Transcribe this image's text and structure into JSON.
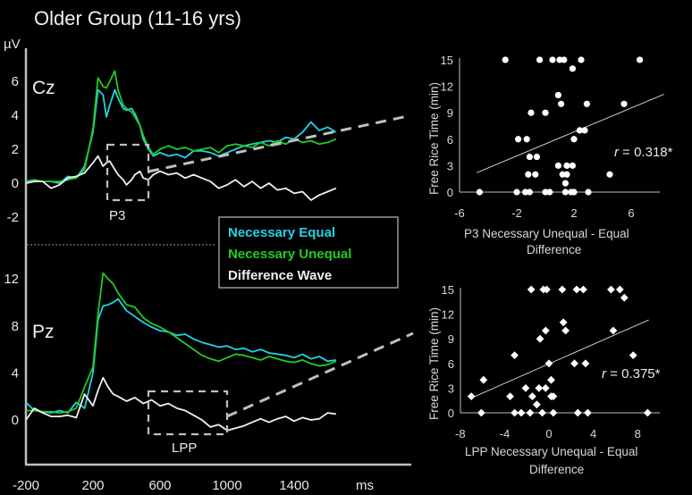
{
  "title": "Older Group (11-16 yrs)",
  "colors": {
    "necessary_equal": "#22d3e6",
    "necessary_unequal": "#22cc22",
    "difference_wave": "#f0f0f0",
    "dashed": "#bfbfbf",
    "axis": "#bfbfbf"
  },
  "chart_data": [
    {
      "type": "line",
      "name": "ERP Cz",
      "electrode": "Cz",
      "ylabel": "µV",
      "xlabel": "ms",
      "x_ticks": [
        -200,
        200,
        600,
        1000,
        1400
      ],
      "y_ticks": [
        6,
        4,
        2,
        0,
        -2
      ],
      "xlim": [
        -200,
        1700
      ],
      "ylim": [
        -3.6,
        7.5
      ],
      "component_box": {
        "label": "P3",
        "x_range": [
          300,
          550
        ],
        "y_range": [
          -1.0,
          2.2
        ]
      },
      "x": [
        -200,
        -150,
        -100,
        -50,
        0,
        50,
        100,
        150,
        200,
        230,
        260,
        280,
        300,
        330,
        350,
        380,
        400,
        430,
        450,
        480,
        500,
        530,
        560,
        600,
        650,
        700,
        750,
        800,
        850,
        900,
        950,
        1000,
        1050,
        1100,
        1150,
        1200,
        1250,
        1300,
        1350,
        1400,
        1450,
        1500,
        1550,
        1600,
        1650
      ],
      "series": [
        {
          "name": "Necessary Equal",
          "values": [
            0.1,
            0.2,
            0.1,
            0.1,
            0.0,
            0.4,
            0.3,
            1.0,
            3.0,
            5.5,
            5.2,
            3.9,
            4.6,
            5.5,
            5.0,
            4.4,
            4.3,
            4.4,
            4.1,
            3.4,
            2.6,
            2.0,
            1.6,
            1.8,
            1.6,
            1.7,
            1.5,
            1.9,
            1.9,
            1.8,
            1.6,
            1.8,
            2.0,
            2.2,
            2.3,
            2.4,
            2.5,
            2.4,
            2.7,
            2.6,
            3.0,
            3.6,
            3.1,
            3.3,
            3.0
          ]
        },
        {
          "name": "Necessary Unequal",
          "values": [
            0.0,
            0.2,
            0.1,
            0.1,
            0.1,
            0.2,
            0.3,
            0.8,
            3.2,
            6.2,
            5.7,
            5.6,
            6.0,
            6.6,
            5.5,
            4.6,
            4.4,
            4.2,
            3.9,
            3.4,
            2.8,
            2.1,
            1.7,
            2.0,
            2.2,
            2.0,
            2.1,
            1.9,
            2.0,
            2.1,
            1.8,
            2.2,
            2.3,
            2.2,
            2.1,
            2.4,
            2.2,
            2.5,
            2.3,
            2.6,
            2.4,
            2.5,
            2.3,
            2.4,
            2.6
          ]
        },
        {
          "name": "Difference Wave",
          "values": [
            0.0,
            0.1,
            0.1,
            -0.3,
            -0.1,
            0.3,
            0.4,
            0.6,
            1.2,
            1.6,
            1.0,
            1.2,
            1.3,
            0.8,
            0.5,
            0.2,
            -0.1,
            0.2,
            0.5,
            0.7,
            0.3,
            0.2,
            0.5,
            0.7,
            0.5,
            0.6,
            0.3,
            0.5,
            0.3,
            0.1,
            -0.3,
            -0.1,
            0.2,
            -0.2,
            0.1,
            -0.3,
            0.0,
            -0.4,
            -0.3,
            -0.6,
            -0.5,
            -1.0,
            -0.7,
            -0.5,
            -0.3
          ]
        }
      ]
    },
    {
      "type": "line",
      "name": "ERP Pz",
      "electrode": "Pz",
      "x_ticks": [
        -200,
        200,
        600,
        1000,
        1400
      ],
      "y_ticks": [
        12,
        8,
        4,
        0
      ],
      "xlim": [
        -200,
        1700
      ],
      "ylim": [
        -3.8,
        15
      ],
      "component_box": {
        "label": "LPP",
        "x_range": [
          550,
          1000
        ],
        "y_range": [
          -1.2,
          2.4
        ]
      },
      "x": [
        -200,
        -150,
        -100,
        -50,
        0,
        50,
        100,
        150,
        200,
        230,
        260,
        290,
        320,
        350,
        400,
        450,
        500,
        550,
        600,
        650,
        700,
        750,
        800,
        850,
        900,
        950,
        1000,
        1050,
        1100,
        1150,
        1200,
        1250,
        1300,
        1350,
        1400,
        1450,
        1500,
        1550,
        1600,
        1650
      ],
      "series": [
        {
          "name": "Necessary Equal",
          "values": [
            1.5,
            0.8,
            0.7,
            0.6,
            0.8,
            0.6,
            1.5,
            1.0,
            4.0,
            8.5,
            9.7,
            9.8,
            10.0,
            10.3,
            9.3,
            8.8,
            8.3,
            7.9,
            7.6,
            7.5,
            7.2,
            7.3,
            6.9,
            6.6,
            6.4,
            6.2,
            6.3,
            6.0,
            6.1,
            5.8,
            6.0,
            5.7,
            5.6,
            5.5,
            5.3,
            5.6,
            5.2,
            5.4,
            5.0,
            5.1
          ]
        },
        {
          "name": "Necessary Unequal",
          "values": [
            0.8,
            0.8,
            0.7,
            0.7,
            0.6,
            0.7,
            1.0,
            2.8,
            4.5,
            9.0,
            12.5,
            12.0,
            11.6,
            10.8,
            9.8,
            9.6,
            8.7,
            8.2,
            7.9,
            7.5,
            7.0,
            6.5,
            6.0,
            5.5,
            5.2,
            5.0,
            5.3,
            5.6,
            5.5,
            5.3,
            5.1,
            5.4,
            5.2,
            5.0,
            4.9,
            5.1,
            4.8,
            4.6,
            4.7,
            5.0
          ]
        },
        {
          "name": "Difference Wave",
          "values": [
            0.0,
            1.0,
            0.6,
            0.3,
            0.3,
            0.4,
            0.2,
            2.2,
            1.2,
            2.5,
            3.6,
            2.8,
            2.2,
            2.0,
            1.6,
            1.9,
            1.4,
            1.7,
            1.2,
            1.4,
            1.0,
            0.8,
            0.4,
            0.0,
            -0.6,
            -0.4,
            -0.9,
            -0.7,
            -0.5,
            -0.2,
            0.1,
            -0.2,
            0.1,
            0.3,
            -0.1,
            0.2,
            0.0,
            0.1,
            0.6,
            0.5
          ]
        }
      ]
    },
    {
      "type": "scatter",
      "name": "P3 scatter",
      "xlabel_line1": "P3 Necessary  Unequal  - Equal",
      "xlabel_line2": "Difference",
      "ylabel": "Free Rice Time (min)",
      "x_ticks": [
        -6,
        -2,
        2,
        6
      ],
      "y_ticks": [
        15,
        12,
        9,
        6,
        3,
        0
      ],
      "xlim": [
        -6.5,
        8.5
      ],
      "ylim": [
        0,
        15
      ],
      "marker": "circle",
      "annotation": {
        "r_symbol": "r",
        "text": " = 0.318*"
      },
      "trendline": {
        "x": [
          -4.8,
          8.3
        ],
        "y": [
          2.2,
          11.1
        ]
      },
      "points": [
        [
          -2.8,
          15
        ],
        [
          -0.4,
          15
        ],
        [
          0.5,
          15
        ],
        [
          1.0,
          15
        ],
        [
          1.3,
          15
        ],
        [
          2.5,
          15
        ],
        [
          6.6,
          15
        ],
        [
          1.9,
          14
        ],
        [
          0.9,
          11
        ],
        [
          1.1,
          10
        ],
        [
          2.9,
          10
        ],
        [
          5.5,
          10
        ],
        [
          -1.0,
          9
        ],
        [
          0.0,
          9
        ],
        [
          2.4,
          7
        ],
        [
          2.75,
          7
        ],
        [
          -1.9,
          6
        ],
        [
          -1.3,
          6
        ],
        [
          2.0,
          6
        ],
        [
          -1.1,
          4
        ],
        [
          -0.6,
          4
        ],
        [
          0.9,
          3
        ],
        [
          1.5,
          3
        ],
        [
          1.9,
          3
        ],
        [
          -1.2,
          2
        ],
        [
          -0.7,
          2
        ],
        [
          1.2,
          2
        ],
        [
          1.5,
          2
        ],
        [
          4.5,
          2
        ],
        [
          1.4,
          1
        ],
        [
          -4.6,
          0
        ],
        [
          -2.0,
          0
        ],
        [
          -1.4,
          0
        ],
        [
          -1.1,
          0
        ],
        [
          0.0,
          0
        ],
        [
          0.3,
          0
        ],
        [
          1.4,
          0
        ],
        [
          1.8,
          0
        ],
        [
          2.0,
          0
        ],
        [
          3.0,
          0
        ]
      ]
    },
    {
      "type": "scatter",
      "name": "LPP scatter",
      "xlabel_line1": "LPP Necessary  Unequal  - Equal",
      "xlabel_line2": "Difference",
      "ylabel": "Free Rice Time (min)",
      "x_ticks": [
        -8,
        -4,
        0,
        4,
        8
      ],
      "y_ticks": [
        15,
        12,
        9,
        6,
        3,
        0
      ],
      "xlim": [
        -8.1,
        10.2
      ],
      "ylim": [
        0,
        15
      ],
      "marker": "diamond",
      "annotation": {
        "r_symbol": "r",
        "text": " = 0.375*"
      },
      "trendline": {
        "x": [
          -7.0,
          9.0
        ],
        "y": [
          1.8,
          11.3
        ]
      },
      "points": [
        [
          -1.6,
          15
        ],
        [
          -0.5,
          15
        ],
        [
          -0.2,
          15
        ],
        [
          1.2,
          15
        ],
        [
          2.5,
          15
        ],
        [
          3.1,
          15
        ],
        [
          5.6,
          15
        ],
        [
          6.4,
          15
        ],
        [
          6.8,
          14
        ],
        [
          1.3,
          11
        ],
        [
          1.5,
          10
        ],
        [
          -0.3,
          10
        ],
        [
          5.8,
          10
        ],
        [
          -0.8,
          9
        ],
        [
          -3.1,
          7
        ],
        [
          7.6,
          7
        ],
        [
          0.0,
          6
        ],
        [
          2.3,
          6
        ],
        [
          3.3,
          6
        ],
        [
          -5.9,
          4
        ],
        [
          0.2,
          4
        ],
        [
          -2.1,
          3
        ],
        [
          -0.9,
          3
        ],
        [
          -0.3,
          3
        ],
        [
          -7.0,
          2
        ],
        [
          -3.5,
          2
        ],
        [
          -1.5,
          2
        ],
        [
          0.2,
          2
        ],
        [
          0.4,
          2
        ],
        [
          -1.1,
          1
        ],
        [
          -6.1,
          0
        ],
        [
          -3.1,
          0
        ],
        [
          -2.5,
          0
        ],
        [
          -1.7,
          0
        ],
        [
          -0.6,
          0
        ],
        [
          0.4,
          0
        ],
        [
          2.6,
          0
        ],
        [
          3.5,
          0
        ],
        [
          8.9,
          0
        ]
      ]
    }
  ],
  "legend": {
    "items": [
      {
        "label": "Necessary Equal",
        "series": "necessary_equal"
      },
      {
        "label": "Necessary Unequal",
        "series": "necessary_unequal"
      },
      {
        "label": "Difference Wave",
        "series": "difference_wave"
      }
    ]
  }
}
